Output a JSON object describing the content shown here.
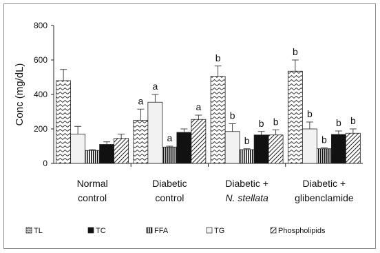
{
  "chart_data": {
    "type": "bar",
    "ylabel": "Conc (mg/dL)",
    "ylim": [
      0,
      800
    ],
    "yticks": [
      "0",
      "200",
      "400",
      "600",
      "800"
    ],
    "categories": [
      {
        "line1": "Normal",
        "line2": "control",
        "line2_italic": false
      },
      {
        "line1": "Diabetic",
        "line2": "control",
        "line2_italic": false
      },
      {
        "line1": "Diabetic +",
        "line2": "N. stellata",
        "line2_italic": true
      },
      {
        "line1": "Diabetic +",
        "line2": "glibenclamide",
        "line2_italic": false
      }
    ],
    "series": [
      {
        "name": "TL",
        "pattern": "zigzag",
        "values": [
          480,
          250,
          505,
          535
        ],
        "errors": [
          65,
          65,
          60,
          65
        ],
        "labels": [
          "",
          "a",
          "b",
          "b"
        ]
      },
      {
        "name": "TG",
        "pattern": "light",
        "values": [
          170,
          355,
          185,
          200
        ],
        "errors": [
          45,
          45,
          45,
          40
        ],
        "labels": [
          "",
          "a",
          "b",
          "b"
        ]
      },
      {
        "name": "FFA",
        "pattern": "vlines",
        "values": [
          75,
          95,
          80,
          85
        ],
        "errors": [
          5,
          5,
          5,
          5
        ],
        "labels": [
          "",
          "a",
          "b",
          "b"
        ]
      },
      {
        "name": "TC",
        "pattern": "black",
        "values": [
          110,
          180,
          165,
          168
        ],
        "errors": [
          15,
          20,
          20,
          20
        ],
        "labels": [
          "",
          "",
          "b",
          "b"
        ]
      },
      {
        "name": "Phospholipids",
        "pattern": "diag",
        "values": [
          145,
          255,
          165,
          175
        ],
        "errors": [
          25,
          25,
          30,
          25
        ],
        "labels": [
          "",
          "a",
          "b",
          "b"
        ]
      }
    ],
    "legend": {
      "placement": "bottom",
      "order": [
        "TL",
        "TC",
        "FFA",
        "TG",
        "Phospholipids"
      ]
    },
    "grid": false
  }
}
